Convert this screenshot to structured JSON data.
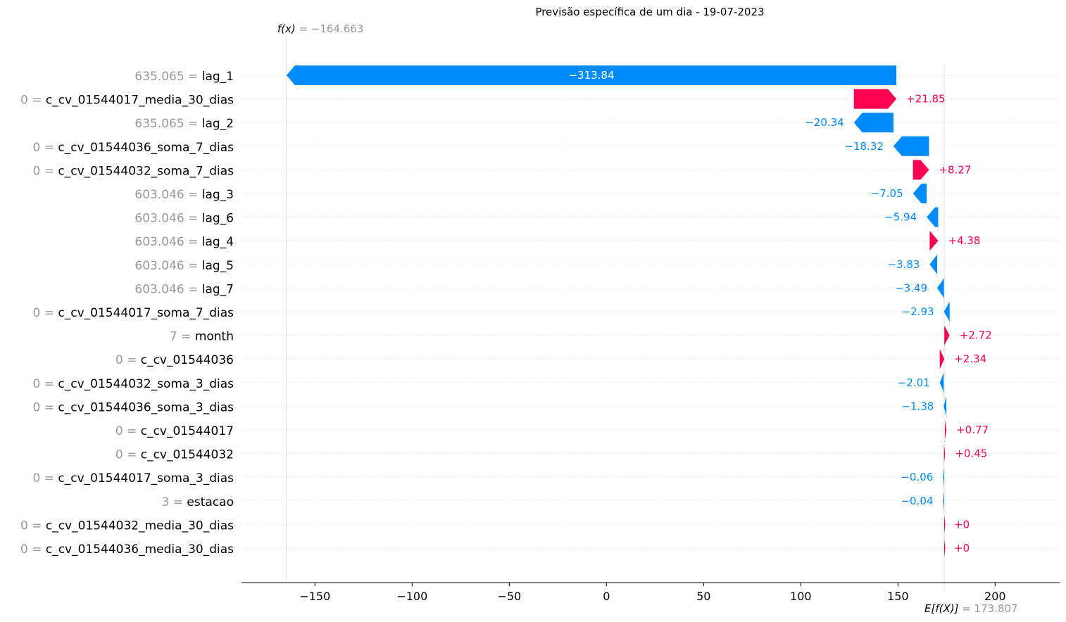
{
  "chart_data": {
    "type": "waterfall",
    "title": "Previsão específica de um dia - 19-07-2023",
    "fx": {
      "symbol": "f(x)",
      "value_text": "−164.663",
      "value": -164.663
    },
    "base": {
      "symbol": "E[f(X)]",
      "value_text": "173.807",
      "value": 173.807
    },
    "xlim": [
      -187,
      234
    ],
    "xticks": [
      {
        "value": -150,
        "label": "−150"
      },
      {
        "value": -100,
        "label": "−100"
      },
      {
        "value": -50,
        "label": "−50"
      },
      {
        "value": 0,
        "label": "0"
      },
      {
        "value": 50,
        "label": "50"
      },
      {
        "value": 100,
        "label": "100"
      },
      {
        "value": 150,
        "label": "150"
      },
      {
        "value": 200,
        "label": "200"
      }
    ],
    "colors": {
      "positive": "#ff0051",
      "negative": "#008bfb",
      "value_gray": "#999999",
      "line_gray": "#bbbbbb"
    },
    "bars": [
      {
        "feature_value": "635.065",
        "feature": "lag_1",
        "shap": -313.84,
        "label": "−313.84"
      },
      {
        "feature_value": "0",
        "feature": "c_cv_01544017_media_30_dias",
        "shap": 21.85,
        "label": "+21.85"
      },
      {
        "feature_value": "635.065",
        "feature": "lag_2",
        "shap": -20.34,
        "label": "−20.34"
      },
      {
        "feature_value": "0",
        "feature": "c_cv_01544036_soma_7_dias",
        "shap": -18.32,
        "label": "−18.32"
      },
      {
        "feature_value": "0",
        "feature": "c_cv_01544032_soma_7_dias",
        "shap": 8.27,
        "label": "+8.27"
      },
      {
        "feature_value": "603.046",
        "feature": "lag_3",
        "shap": -7.05,
        "label": "−7.05"
      },
      {
        "feature_value": "603.046",
        "feature": "lag_6",
        "shap": -5.94,
        "label": "−5.94"
      },
      {
        "feature_value": "603.046",
        "feature": "lag_4",
        "shap": 4.38,
        "label": "+4.38"
      },
      {
        "feature_value": "603.046",
        "feature": "lag_5",
        "shap": -3.83,
        "label": "−3.83"
      },
      {
        "feature_value": "603.046",
        "feature": "lag_7",
        "shap": -3.49,
        "label": "−3.49"
      },
      {
        "feature_value": "0",
        "feature": "c_cv_01544017_soma_7_dias",
        "shap": -2.93,
        "label": "−2.93"
      },
      {
        "feature_value": "7",
        "feature": "month",
        "shap": 2.72,
        "label": "+2.72"
      },
      {
        "feature_value": "0",
        "feature": "c_cv_01544036",
        "shap": 2.34,
        "label": "+2.34"
      },
      {
        "feature_value": "0",
        "feature": "c_cv_01544032_soma_3_dias",
        "shap": -2.01,
        "label": "−2.01"
      },
      {
        "feature_value": "0",
        "feature": "c_cv_01544036_soma_3_dias",
        "shap": -1.38,
        "label": "−1.38"
      },
      {
        "feature_value": "0",
        "feature": "c_cv_01544017",
        "shap": 0.77,
        "label": "+0.77"
      },
      {
        "feature_value": "0",
        "feature": "c_cv_01544032",
        "shap": 0.45,
        "label": "+0.45"
      },
      {
        "feature_value": "0",
        "feature": "c_cv_01544017_soma_3_dias",
        "shap": -0.06,
        "label": "−0.06"
      },
      {
        "feature_value": "3",
        "feature": "estacao",
        "shap": -0.04,
        "label": "−0.04"
      },
      {
        "feature_value": "0",
        "feature": "c_cv_01544032_media_30_dias",
        "shap": 0.0,
        "label": "+0"
      },
      {
        "feature_value": "0",
        "feature": "c_cv_01544036_media_30_dias",
        "shap": 0.0,
        "label": "+0"
      }
    ]
  }
}
